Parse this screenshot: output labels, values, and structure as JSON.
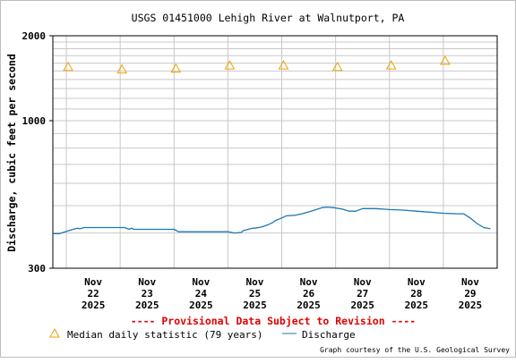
{
  "chart_data": {
    "type": "line",
    "title": "USGS 01451000 Lehigh River at Walnutport, PA",
    "ylabel": "Discharge, cubic feet per second",
    "xlabel": "",
    "y_scale": "log",
    "ylim": [
      300,
      2000
    ],
    "y_tick_labels": [
      "2000",
      "1000",
      "300"
    ],
    "x_tick_labels": [
      {
        "month": "Nov",
        "day": "22",
        "year": "2025"
      },
      {
        "month": "Nov",
        "day": "23",
        "year": "2025"
      },
      {
        "month": "Nov",
        "day": "24",
        "year": "2025"
      },
      {
        "month": "Nov",
        "day": "25",
        "year": "2025"
      },
      {
        "month": "Nov",
        "day": "26",
        "year": "2025"
      },
      {
        "month": "Nov",
        "day": "27",
        "year": "2025"
      },
      {
        "month": "Nov",
        "day": "28",
        "year": "2025"
      },
      {
        "month": "Nov",
        "day": "29",
        "year": "2025"
      }
    ],
    "xlim": [
      "2025-11-21 18:00",
      "2025-11-30 00:00"
    ],
    "grid": true,
    "series": [
      {
        "name": "Median daily statistic (79 years)",
        "kind": "markers",
        "marker": "triangle",
        "color": "#f0a000",
        "points": [
          {
            "x": "2025-11-22 00:00",
            "y": 1550
          },
          {
            "x": "2025-11-23 00:00",
            "y": 1520
          },
          {
            "x": "2025-11-24 00:00",
            "y": 1530
          },
          {
            "x": "2025-11-25 00:00",
            "y": 1570
          },
          {
            "x": "2025-11-26 00:00",
            "y": 1570
          },
          {
            "x": "2025-11-27 00:00",
            "y": 1550
          },
          {
            "x": "2025-11-28 00:00",
            "y": 1570
          },
          {
            "x": "2025-11-29 00:00",
            "y": 1630
          }
        ]
      },
      {
        "name": "Discharge",
        "kind": "line",
        "color": "#1f77b4",
        "points": [
          {
            "x": "2025-11-21 18:00",
            "y": 398
          },
          {
            "x": "2025-11-21 21:00",
            "y": 398
          },
          {
            "x": "2025-11-22 00:00",
            "y": 405
          },
          {
            "x": "2025-11-22 03:00",
            "y": 412
          },
          {
            "x": "2025-11-22 05:00",
            "y": 416
          },
          {
            "x": "2025-11-22 06:00",
            "y": 414
          },
          {
            "x": "2025-11-22 08:00",
            "y": 418
          },
          {
            "x": "2025-11-22 12:00",
            "y": 418
          },
          {
            "x": "2025-11-23 00:00",
            "y": 418
          },
          {
            "x": "2025-11-23 02:00",
            "y": 418
          },
          {
            "x": "2025-11-23 04:00",
            "y": 412
          },
          {
            "x": "2025-11-23 05:00",
            "y": 416
          },
          {
            "x": "2025-11-23 06:00",
            "y": 412
          },
          {
            "x": "2025-11-24 00:00",
            "y": 412
          },
          {
            "x": "2025-11-24 02:00",
            "y": 404
          },
          {
            "x": "2025-11-24 12:00",
            "y": 404
          },
          {
            "x": "2025-11-25 00:00",
            "y": 404
          },
          {
            "x": "2025-11-25 03:00",
            "y": 400
          },
          {
            "x": "2025-11-25 06:00",
            "y": 402
          },
          {
            "x": "2025-11-25 07:00",
            "y": 408
          },
          {
            "x": "2025-11-25 09:00",
            "y": 412
          },
          {
            "x": "2025-11-25 11:00",
            "y": 416
          },
          {
            "x": "2025-11-25 12:00",
            "y": 416
          },
          {
            "x": "2025-11-25 15:00",
            "y": 420
          },
          {
            "x": "2025-11-25 18:00",
            "y": 428
          },
          {
            "x": "2025-11-25 20:00",
            "y": 436
          },
          {
            "x": "2025-11-25 21:00",
            "y": 442
          },
          {
            "x": "2025-11-26 00:00",
            "y": 452
          },
          {
            "x": "2025-11-26 02:00",
            "y": 460
          },
          {
            "x": "2025-11-26 06:00",
            "y": 462
          },
          {
            "x": "2025-11-26 09:00",
            "y": 468
          },
          {
            "x": "2025-11-26 13:00",
            "y": 478
          },
          {
            "x": "2025-11-26 18:00",
            "y": 492
          },
          {
            "x": "2025-11-26 20:00",
            "y": 494
          },
          {
            "x": "2025-11-26 23:00",
            "y": 492
          },
          {
            "x": "2025-11-27 03:00",
            "y": 486
          },
          {
            "x": "2025-11-27 06:00",
            "y": 478
          },
          {
            "x": "2025-11-27 09:00",
            "y": 478
          },
          {
            "x": "2025-11-27 12:00",
            "y": 488
          },
          {
            "x": "2025-11-27 18:00",
            "y": 488
          },
          {
            "x": "2025-11-28 00:00",
            "y": 484
          },
          {
            "x": "2025-11-28 06:00",
            "y": 482
          },
          {
            "x": "2025-11-28 12:00",
            "y": 478
          },
          {
            "x": "2025-11-28 18:00",
            "y": 474
          },
          {
            "x": "2025-11-29 00:00",
            "y": 470
          },
          {
            "x": "2025-11-29 06:00",
            "y": 468
          },
          {
            "x": "2025-11-29 09:00",
            "y": 468
          },
          {
            "x": "2025-11-29 12:00",
            "y": 452
          },
          {
            "x": "2025-11-29 15:00",
            "y": 432
          },
          {
            "x": "2025-11-29 18:00",
            "y": 418
          },
          {
            "x": "2025-11-29 21:00",
            "y": 414
          }
        ]
      }
    ],
    "legend_position": "bottom-left"
  },
  "legend": {
    "median_label": "Median daily statistic (79 years)",
    "discharge_label": "Discharge"
  },
  "provisional_text": "---- Provisional Data Subject to Revision ----",
  "credit_text": "Graph courtesy of the U.S. Geological Survey",
  "colors": {
    "median_marker": "#f0a000",
    "discharge_line": "#1f77b4",
    "provisional": "#e00000",
    "grid": "#c8c8c8"
  }
}
